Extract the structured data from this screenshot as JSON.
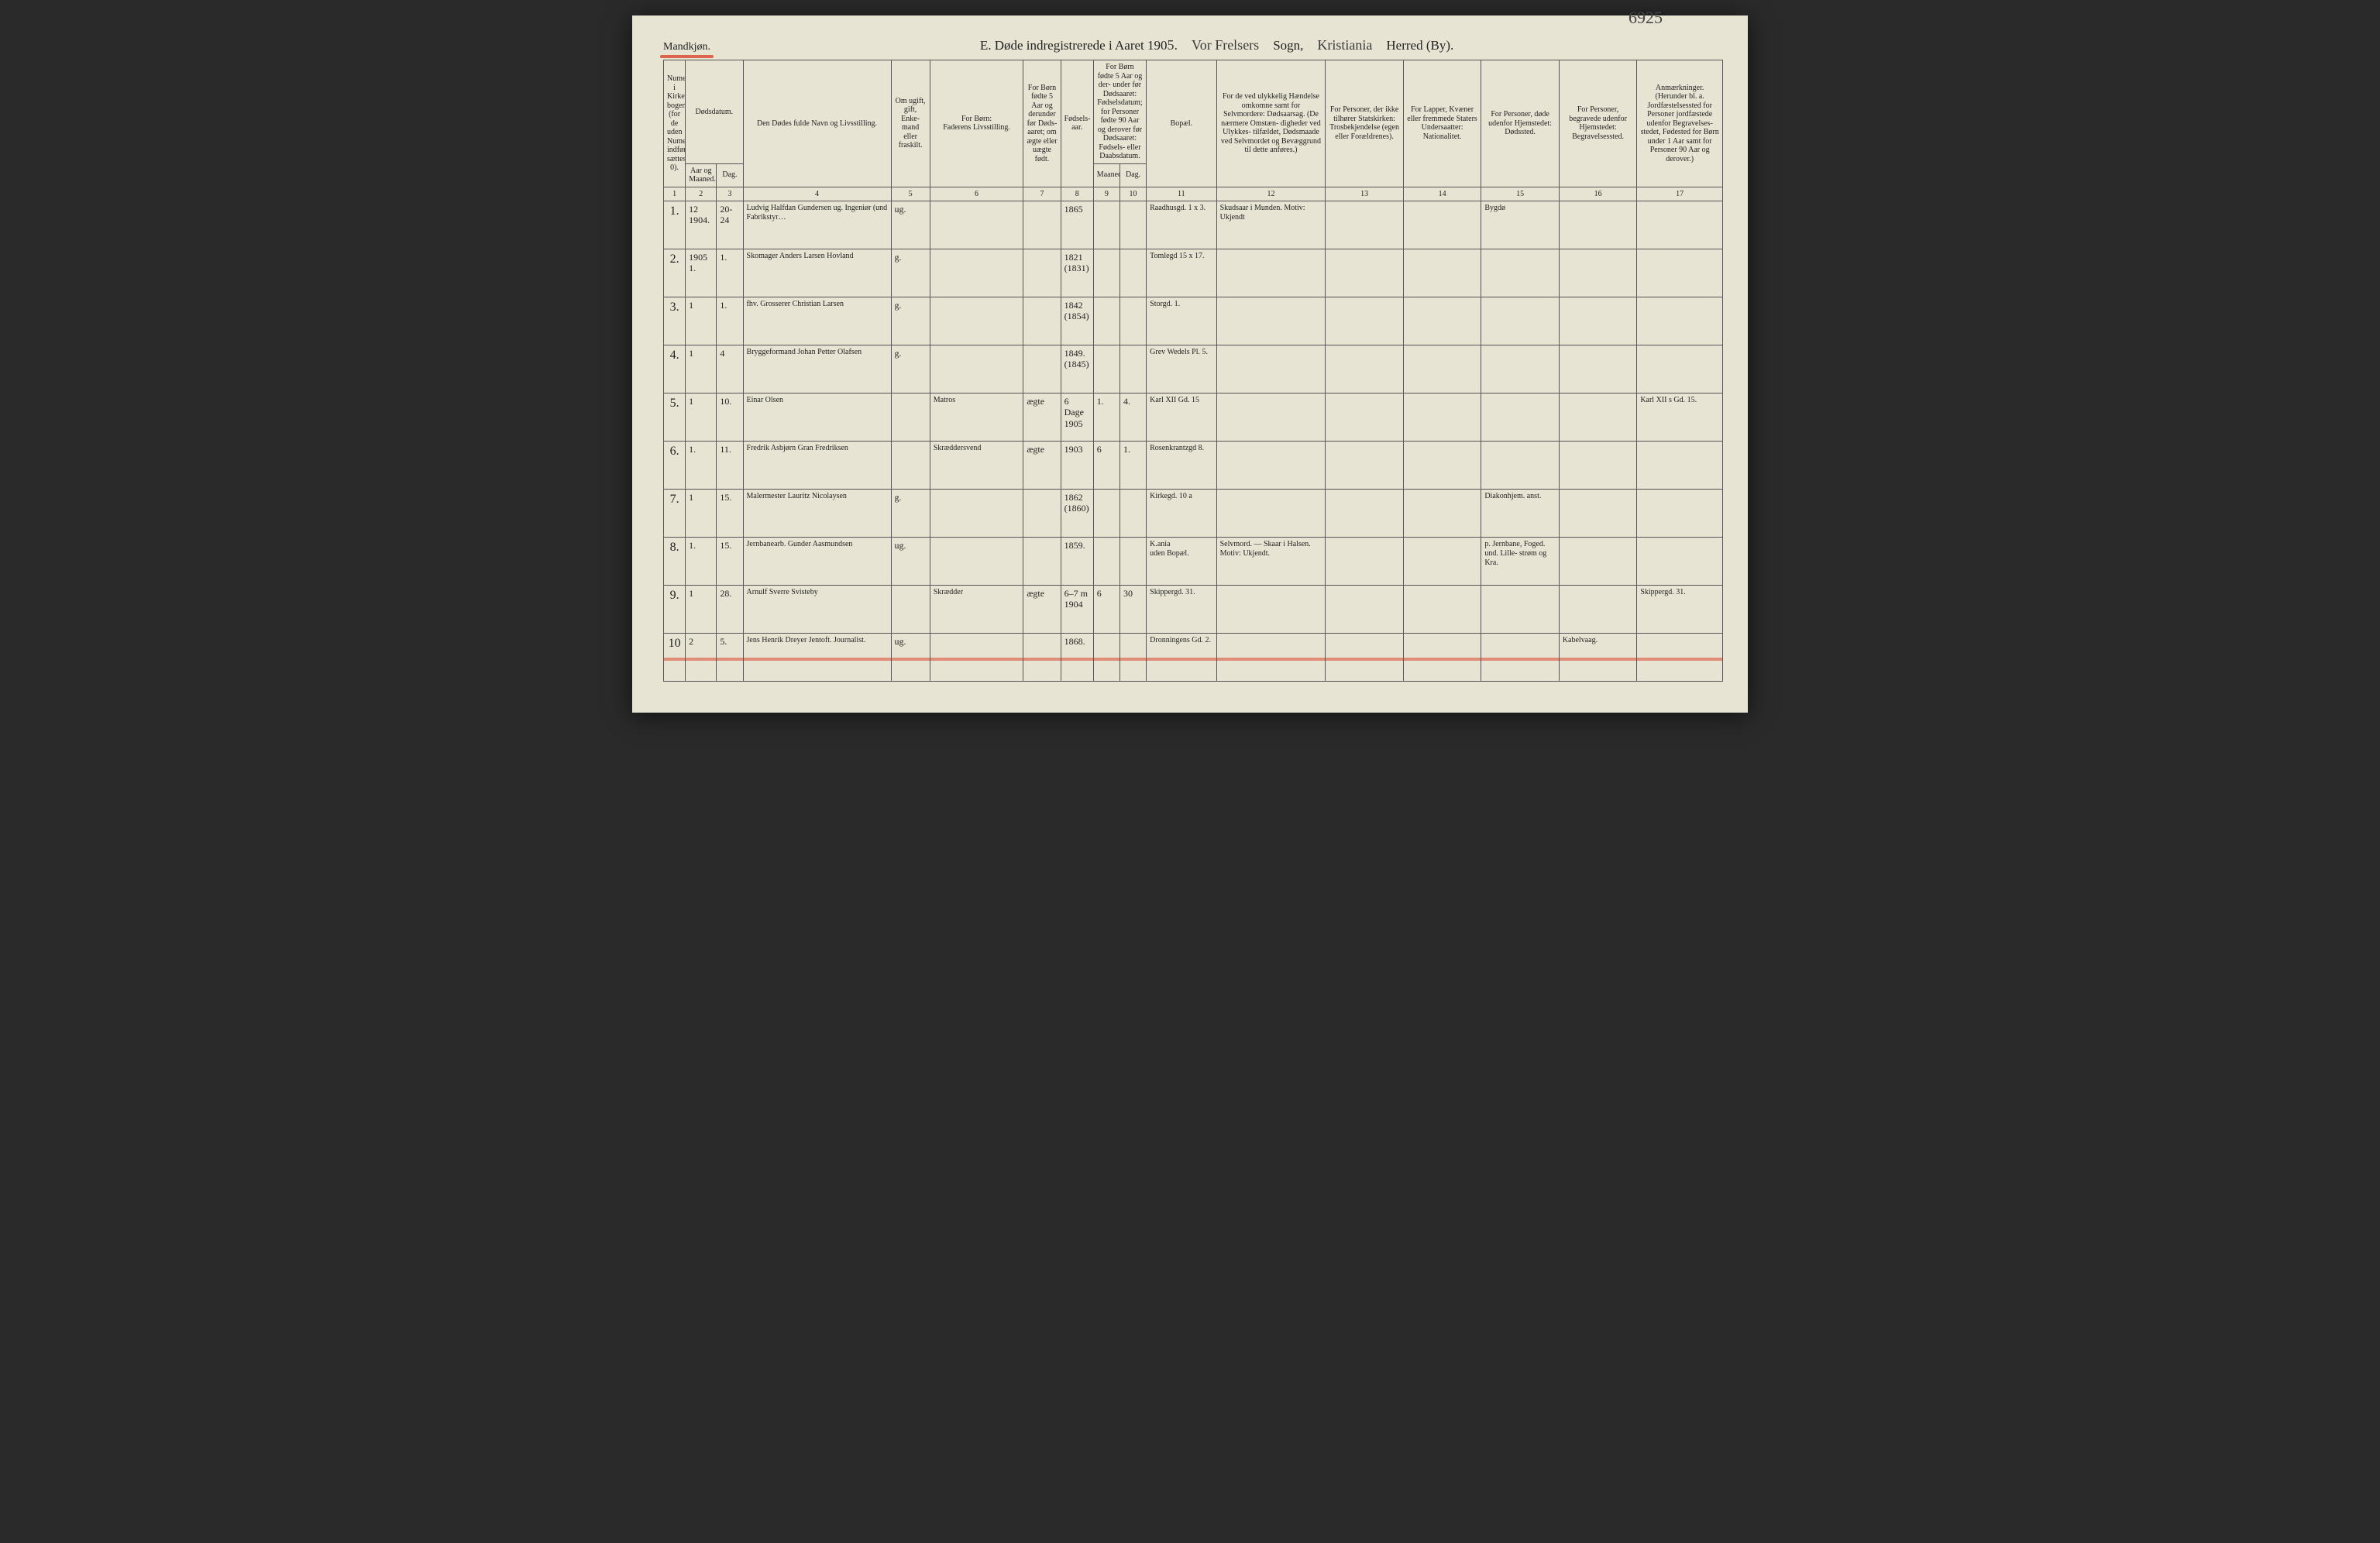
{
  "gender_label": "Mandkjøn.",
  "page_number_top": "6925",
  "title": {
    "prefix": "E.   Døde indregistrerede i Aaret 190",
    "year_suffix_hand": "5.",
    "parish_hand": "Vor Frelsers",
    "sogn_label": "Sogn,",
    "city_hand": "Kristiania",
    "herred_label": "Herred (By)."
  },
  "header": {
    "col1": "Numer i Kirke- bogen (for de uden Numer indførte sættes 0).",
    "col2_group": "Dødsdatum.",
    "col2": "Aar og Maaned.",
    "col3": "Dag.",
    "col4": "Den Dødes fulde Navn og Livsstilling.",
    "col5": "Om ugift, gift, Enke- mand eller fraskilt.",
    "col6_top": "For Børn:",
    "col6": "Faderens Livsstilling.",
    "col7": "For Børn fødte 5 Aar og derunder før Døds- aaret; om ægte eller uægte født.",
    "col8": "Fødsels- aar.",
    "col9_10_top": "For Børn fødte 5 Aar og der- under før Dødsaaret: Fødselsdatum; for Personer fødte 90 Aar og derover før Dødsaaret: Fødsels- eller Daabsdatum.",
    "col9": "Maaned.",
    "col10": "Dag.",
    "col11": "Bopæl.",
    "col12": "For de ved ulykkelig Hændelse omkomne samt for Selvmordere: Dødsaarsag. (De nærmere Omstæn- digheder ved Ulykkes- tilfældet, Dødsmaade ved Selvmordet og Bevæggrund til dette anføres.)",
    "col13": "For Personer, der ikke tilhører Statskirken: Trosbekjendelse (egen eller Forældrenes).",
    "col14": "For Lapper, Kvæner eller fremmede Staters Undersaatter: Nationalitet.",
    "col15": "For Personer, døde udenfor Hjemstedet: Dødssted.",
    "col16": "For Personer, begravede udenfor Hjemstedet: Begravelsessted.",
    "col17": "Anmærkninger. (Herunder bl. a. Jordfæstelsessted for Personer jordfæstede udenfor Begravelses- stedet, Fødested for Børn under 1 Aar samt for Personer 90 Aar og derover.)"
  },
  "colnums": [
    "1",
    "2",
    "3",
    "4",
    "5",
    "6",
    "7",
    "8",
    "9",
    "10",
    "11",
    "12",
    "13",
    "14",
    "15",
    "16",
    "17"
  ],
  "rows": [
    {
      "n": "1.",
      "ym": "12\n1904.",
      "d": "20-24",
      "name": "Ludvig Halfdan Gundersen ug. Ingeniør (und Fabrikstyr…",
      "ms": "ug.",
      "father": "",
      "leg": "",
      "born": "1865",
      "bm": "",
      "bd": "",
      "addr": "Raadhusgd. 1 x 3.",
      "cause": "Skudsaar i Munden. Motiv: Ukjendt",
      "rel": "",
      "nat": "",
      "dsted": "Bygdø",
      "bsted": "",
      "note": ""
    },
    {
      "n": "2.",
      "ym": "1905\n1.",
      "d": "1.",
      "name": "Skomager Anders Larsen Hovland",
      "ms": "g.",
      "father": "",
      "leg": "",
      "born": "1821\n(1831)",
      "bm": "",
      "bd": "",
      "addr": "Tomlegd 15 x 17.",
      "cause": "",
      "rel": "",
      "nat": "",
      "dsted": "",
      "bsted": "",
      "note": ""
    },
    {
      "n": "3.",
      "ym": "1",
      "d": "1.",
      "name": "fhv. Grosserer Christian Larsen",
      "ms": "g.",
      "father": "",
      "leg": "",
      "born": "1842\n(1854)",
      "bm": "",
      "bd": "",
      "addr": "Storgd. 1.",
      "cause": "",
      "rel": "",
      "nat": "",
      "dsted": "",
      "bsted": "",
      "note": ""
    },
    {
      "n": "4.",
      "ym": "1",
      "d": "4",
      "name": "Bryggeformand Johan Petter Olafsen",
      "ms": "g.",
      "father": "",
      "leg": "",
      "born": "1849.\n(1845)",
      "bm": "",
      "bd": "",
      "addr": "Grev Wedels Pl. 5.",
      "cause": "",
      "rel": "",
      "nat": "",
      "dsted": "",
      "bsted": "",
      "note": ""
    },
    {
      "n": "5.",
      "ym": "1",
      "d": "10.",
      "name": "Einar Olsen",
      "ms": "",
      "father": "Matros",
      "leg": "ægte",
      "born": "6 Dage\n1905",
      "bm": "1.",
      "bd": "4.",
      "addr": "Karl XII Gd. 15",
      "cause": "",
      "rel": "",
      "nat": "",
      "dsted": "",
      "bsted": "",
      "note": "Karl XII s Gd. 15."
    },
    {
      "n": "6.",
      "ym": "1.",
      "d": "11.",
      "name": "Fredrik Asbjørn Gran Fredriksen",
      "ms": "",
      "father": "Skræddersvend",
      "leg": "ægte",
      "born": "1903",
      "bm": "6",
      "bd": "1.",
      "addr": "Rosenkrantzgd 8.",
      "cause": "",
      "rel": "",
      "nat": "",
      "dsted": "",
      "bsted": "",
      "note": ""
    },
    {
      "n": "7.",
      "ym": "1",
      "d": "15.",
      "name": "Malermester Lauritz Nicolaysen",
      "ms": "g.",
      "father": "",
      "leg": "",
      "born": "1862\n(1860)",
      "bm": "",
      "bd": "",
      "addr": "Kirkegd. 10 a",
      "cause": "",
      "rel": "",
      "nat": "",
      "dsted": "Diakonhjem. anst.",
      "bsted": "",
      "note": ""
    },
    {
      "n": "8.",
      "ym": "1.",
      "d": "15.",
      "name": "Jernbanearb. Gunder Aasmundsen",
      "ms": "ug.",
      "father": "",
      "leg": "",
      "born": "1859.",
      "bm": "",
      "bd": "",
      "addr": "K.ania\nuden Bopæl.",
      "cause": "Selvmord. — Skaar i Halsen. Motiv: Ukjendt.",
      "rel": "",
      "nat": "",
      "dsted": "p. Jernbane, Foged. und. Lille- strøm og Kra.",
      "bsted": "",
      "note": ""
    },
    {
      "n": "9.",
      "ym": "1",
      "d": "28.",
      "name": "Arnulf Sverre Svisteby",
      "ms": "",
      "father": "Skrædder",
      "leg": "ægte",
      "born": "6–7 m\n1904",
      "bm": "6",
      "bd": "30",
      "addr": "Skippergd. 31.",
      "cause": "",
      "rel": "",
      "nat": "",
      "dsted": "",
      "bsted": "",
      "note": "Skippergd. 31."
    },
    {
      "n": "10",
      "ym": "2",
      "d": "5.",
      "name": "Jens Henrik Dreyer Jentoft. Journalist.",
      "ms": "ug.",
      "father": "",
      "leg": "",
      "born": "1868.",
      "bm": "",
      "bd": "",
      "addr": "Dronningens Gd. 2.",
      "cause": "",
      "rel": "",
      "nat": "",
      "dsted": "",
      "bsted": "Kabelvaag.",
      "note": ""
    }
  ],
  "colors": {
    "paper": "#e8e4d4",
    "ink": "#222222",
    "handwriting": "#353535",
    "rule": "#555555",
    "red_pencil": "#d9452b"
  }
}
